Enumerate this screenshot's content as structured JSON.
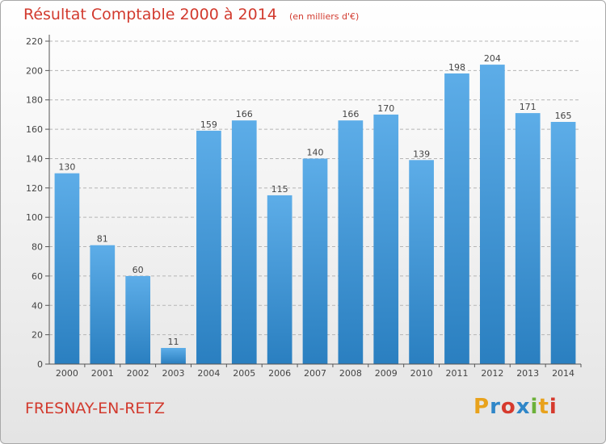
{
  "header": {
    "title": "Résultat Comptable 2000 à 2014",
    "subtitle": "(en milliers d'€)"
  },
  "footer": {
    "commune": "FRESNAY-EN-RETZ",
    "logo_text": "Proxiti"
  },
  "colors": {
    "title": "#d23a2e",
    "bar_top": "#5dade8",
    "bar_bottom": "#2a7fc0",
    "axis": "#555555",
    "grid": "#b5b5b5"
  },
  "chart_data": {
    "type": "bar",
    "categories": [
      "2000",
      "2001",
      "2002",
      "2003",
      "2004",
      "2005",
      "2006",
      "2007",
      "2008",
      "2009",
      "2010",
      "2011",
      "2012",
      "2013",
      "2014"
    ],
    "values": [
      130,
      81,
      60,
      11,
      159,
      166,
      115,
      140,
      166,
      170,
      139,
      198,
      204,
      171,
      165
    ],
    "data_labels": [
      "130",
      "81",
      "60",
      "11",
      "159",
      "166",
      "115",
      "140",
      "166",
      "170",
      "139",
      "198",
      "204",
      "171",
      "165"
    ],
    "yticks": [
      "0",
      "20",
      "40",
      "60",
      "80",
      "100",
      "120",
      "140",
      "160",
      "180",
      "200",
      "220"
    ],
    "ylim": [
      0,
      220
    ],
    "grid": true,
    "legend": "none"
  }
}
